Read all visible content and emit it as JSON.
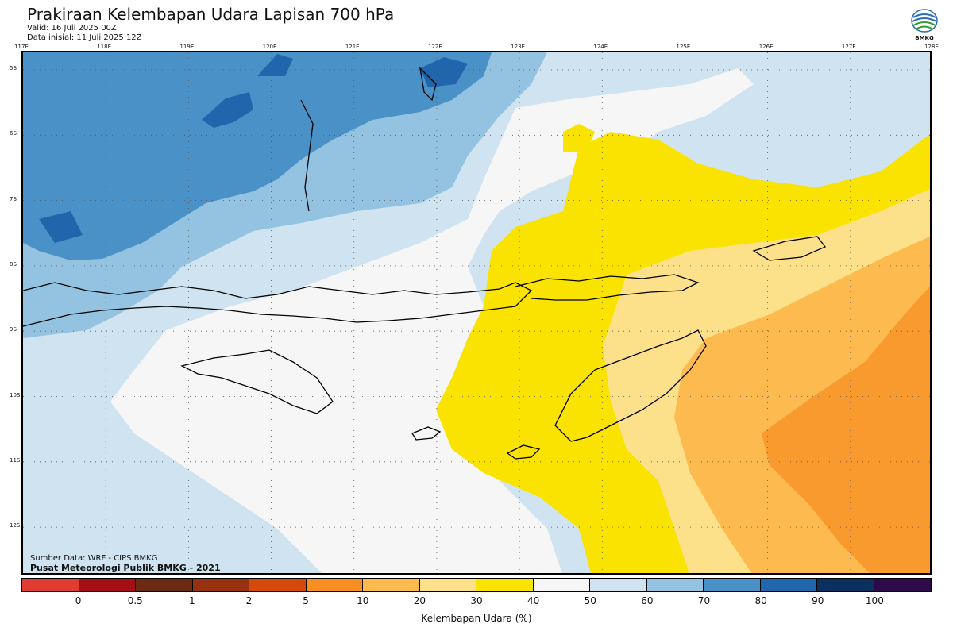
{
  "title": "Prakiraan Kelembapan Udara Lapisan 700 hPa",
  "valid": "Valid: 16 Juli 2025 00Z",
  "init": "Data inisial: 11 Juli 2025 12Z",
  "logo_text": "BMKG",
  "source_data": "Sumber Data: WRF - CIPS BMKG",
  "source_org": "Pusat Meteorologi Publik BMKG - 2021",
  "longitude_labels": [
    "117E",
    "118E",
    "119E",
    "120E",
    "121E",
    "122E",
    "123E",
    "124E",
    "125E",
    "126E",
    "127E",
    "128E"
  ],
  "latitude_labels": [
    "5S",
    "6S",
    "7S",
    "8S",
    "9S",
    "10S",
    "11S",
    "12S"
  ],
  "colorbar": {
    "title": "Kelembapan Udara (%)",
    "ticks": [
      "0",
      "0.5",
      "1",
      "2",
      "5",
      "10",
      "20",
      "30",
      "40",
      "50",
      "60",
      "70",
      "80",
      "90",
      "100"
    ],
    "colors": [
      "#e03c32",
      "#a40f16",
      "#6b2a12",
      "#973210",
      "#d44a0a",
      "#f98e22",
      "#fdbb4f",
      "#fde08a",
      "#fae300",
      "#f6f6f6",
      "#cfe3f0",
      "#93c3e0",
      "#4a91c8",
      "#2166ac",
      "#0a3060",
      "#2e0a4a"
    ]
  },
  "field_colors": {
    "h60": "#cfe3f0",
    "h70": "#93c3e0",
    "h80": "#4a91c8",
    "h90": "#2166ac",
    "h50": "#f6f6f6",
    "h40": "#fae300",
    "h30": "#fde08a",
    "h20": "#fdbb4f",
    "h10": "#f99a2f"
  }
}
